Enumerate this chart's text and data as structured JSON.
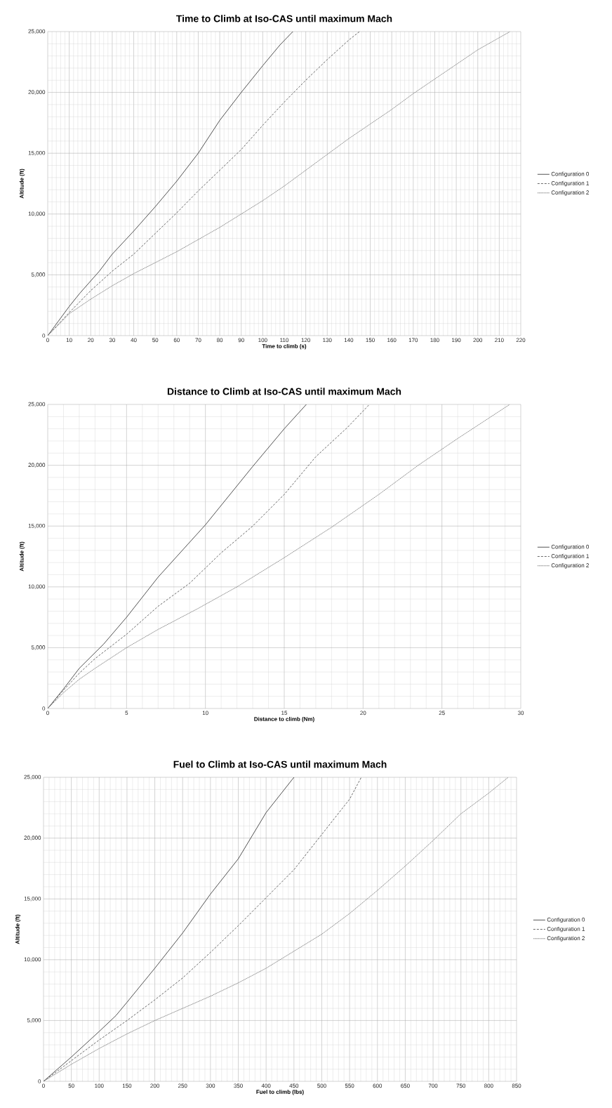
{
  "chart_data": [
    {
      "type": "line",
      "title": "Time to Climb at Iso-CAS until maximum Mach",
      "xlabel": "Time to climb (s)",
      "ylabel": "Altitude (ft)",
      "xlim": [
        0,
        220
      ],
      "xticks": [
        0,
        10,
        20,
        30,
        40,
        50,
        60,
        70,
        80,
        90,
        100,
        110,
        120,
        130,
        140,
        150,
        160,
        170,
        180,
        190,
        200,
        210,
        220
      ],
      "ylim": [
        0,
        25000
      ],
      "yticks": [
        0,
        {
          "value": 5000,
          "label": "5,000"
        },
        {
          "value": 10000,
          "label": "10,000"
        },
        {
          "value": 15000,
          "label": "15,000"
        },
        {
          "value": 20000,
          "label": "20,000"
        },
        {
          "value": 25000,
          "label": "25,000"
        }
      ],
      "grid": true,
      "legend": "right",
      "marker": "none",
      "series": [
        {
          "name": "Configuration 0",
          "color": "#404040",
          "line_style": "solid",
          "x": [
            0,
            5,
            10,
            15,
            20,
            24,
            30,
            40,
            50,
            60,
            70,
            80,
            90,
            100,
            108,
            114
          ],
          "values": [
            0,
            1200,
            2400,
            3500,
            4500,
            5300,
            6700,
            8600,
            10600,
            12700,
            15000,
            17700,
            20000,
            22200,
            23900,
            25000
          ]
        },
        {
          "name": "Configuration 1",
          "color": "#595959",
          "line_style": "dashed",
          "x": [
            0,
            10,
            20,
            30,
            40,
            50,
            60,
            70,
            80,
            90,
            100,
            110,
            120,
            130,
            140,
            145
          ],
          "values": [
            0,
            1900,
            3700,
            5300,
            6700,
            8400,
            10100,
            11900,
            13600,
            15300,
            17300,
            19200,
            21000,
            22700,
            24300,
            25000
          ]
        },
        {
          "name": "Configuration 2",
          "color": "#7f7f7f",
          "line_style": "dotted",
          "x": [
            0,
            10,
            20,
            30,
            40,
            50,
            60,
            73,
            80,
            90,
            100,
            110,
            120,
            130,
            140,
            150,
            160,
            170,
            180,
            190,
            200,
            215
          ],
          "values": [
            0,
            1800,
            3000,
            4100,
            5100,
            6000,
            6900,
            8200,
            8900,
            10000,
            11100,
            12300,
            13600,
            14900,
            16200,
            17400,
            18600,
            19900,
            21100,
            22300,
            23500,
            25000
          ]
        }
      ]
    },
    {
      "type": "line",
      "title": "Distance to Climb at Iso-CAS until maximum Mach",
      "xlabel": "Distance to climb (Nm)",
      "ylabel": "Altitude (ft)",
      "xlim": [
        0,
        30
      ],
      "xticks": [
        0,
        5,
        10,
        15,
        20,
        25,
        30
      ],
      "ylim": [
        0,
        25000
      ],
      "yticks": [
        0,
        {
          "value": 5000,
          "label": "5,000"
        },
        {
          "value": 10000,
          "label": "10,000"
        },
        {
          "value": 15000,
          "label": "15,000"
        },
        {
          "value": 20000,
          "label": "20,000"
        },
        {
          "value": 25000,
          "label": "25,000"
        }
      ],
      "grid": true,
      "legend": "right",
      "marker": "none",
      "series": [
        {
          "name": "Configuration 0",
          "color": "#404040",
          "line_style": "solid",
          "x": [
            0,
            1,
            2,
            3.55,
            5,
            7,
            10,
            13,
            15,
            16.4
          ],
          "values": [
            0,
            1600,
            3300,
            5300,
            7500,
            10800,
            15100,
            19900,
            23000,
            25000
          ]
        },
        {
          "name": "Configuration 1",
          "color": "#595959",
          "line_style": "dashed",
          "x": [
            0,
            1,
            2,
            3,
            5,
            7,
            9,
            11,
            13,
            15,
            17,
            19,
            20.4
          ],
          "values": [
            0,
            1500,
            2900,
            4100,
            6100,
            8400,
            10300,
            12800,
            15000,
            17600,
            20700,
            23100,
            25000
          ]
        },
        {
          "name": "Configuration 2",
          "color": "#7f7f7f",
          "line_style": "dotted",
          "x": [
            0,
            1,
            2,
            3,
            5,
            7,
            9.5,
            12,
            15,
            18,
            21,
            23.5,
            26,
            29.3
          ],
          "values": [
            0,
            1300,
            2400,
            3300,
            5000,
            6500,
            8200,
            10000,
            12400,
            14900,
            17600,
            20000,
            22200,
            25000
          ]
        }
      ]
    },
    {
      "type": "line",
      "title": "Fuel to Climb at Iso-CAS until maximum Mach",
      "xlabel": "Fuel to climb (lbs)",
      "ylabel": "Altitude (ft)",
      "xlim": [
        0,
        850
      ],
      "xticks": [
        0,
        50,
        100,
        150,
        200,
        250,
        300,
        350,
        400,
        450,
        500,
        550,
        600,
        650,
        700,
        750,
        800,
        850
      ],
      "ylim": [
        0,
        25000
      ],
      "yticks": [
        0,
        {
          "value": 5000,
          "label": "5,000"
        },
        {
          "value": 10000,
          "label": "10,000"
        },
        {
          "value": 15000,
          "label": "15,000"
        },
        {
          "value": 20000,
          "label": "20,000"
        },
        {
          "value": 25000,
          "label": "25,000"
        }
      ],
      "grid": true,
      "legend": "right",
      "marker": "none",
      "series": [
        {
          "name": "Configuration 0",
          "color": "#404040",
          "line_style": "solid",
          "x": [
            0,
            50,
            100,
            130,
            150,
            200,
            250,
            300,
            350,
            400,
            450
          ],
          "values": [
            0,
            2000,
            4100,
            5400,
            6500,
            9300,
            12200,
            15400,
            18300,
            22100,
            25000
          ]
        },
        {
          "name": "Configuration 1",
          "color": "#595959",
          "line_style": "dashed",
          "x": [
            0,
            50,
            100,
            150,
            200,
            250,
            300,
            350,
            400,
            450,
            500,
            550,
            571
          ],
          "values": [
            0,
            1700,
            3400,
            5000,
            6700,
            8500,
            10600,
            12800,
            15100,
            17400,
            20300,
            23200,
            25000
          ]
        },
        {
          "name": "Configuration 2",
          "color": "#7f7f7f",
          "line_style": "dotted",
          "x": [
            0,
            50,
            100,
            150,
            200,
            250,
            300,
            350,
            400,
            450,
            500,
            550,
            600,
            650,
            700,
            750,
            800,
            835
          ],
          "values": [
            0,
            1400,
            2700,
            3900,
            5000,
            6000,
            7000,
            8100,
            9300,
            10700,
            12100,
            13800,
            15700,
            17700,
            19800,
            22000,
            23700,
            25000
          ]
        }
      ]
    }
  ]
}
